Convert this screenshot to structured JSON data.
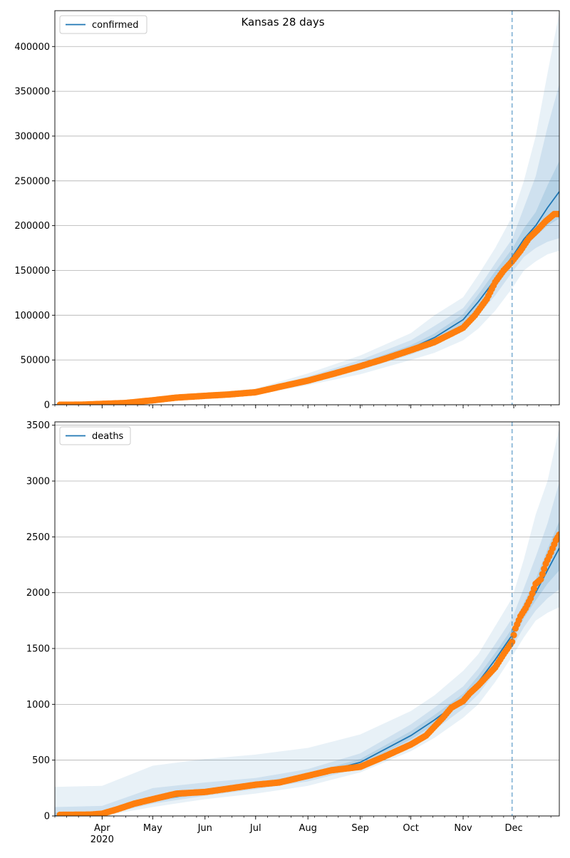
{
  "title": "Kansas 28 days",
  "colors": {
    "model_line": "#1f77b4",
    "observed": "#ff7f0e",
    "band": "#1f77b4",
    "grid": "#b0b0b0",
    "vline": "#1f77b4"
  },
  "x_axis": {
    "range": [
      "2020-03-04",
      "2020-12-28"
    ],
    "month_ticks": [
      {
        "date": "2020-04-01",
        "label": "Apr",
        "sub": "2020"
      },
      {
        "date": "2020-05-01",
        "label": "May",
        "sub": ""
      },
      {
        "date": "2020-06-01",
        "label": "Jun",
        "sub": ""
      },
      {
        "date": "2020-07-01",
        "label": "Jul",
        "sub": ""
      },
      {
        "date": "2020-08-01",
        "label": "Aug",
        "sub": ""
      },
      {
        "date": "2020-09-01",
        "label": "Sep",
        "sub": ""
      },
      {
        "date": "2020-10-01",
        "label": "Oct",
        "sub": ""
      },
      {
        "date": "2020-11-01",
        "label": "Nov",
        "sub": ""
      },
      {
        "date": "2020-12-01",
        "label": "Dec",
        "sub": ""
      }
    ],
    "forecast_start": "2020-11-30"
  },
  "chart_data": [
    {
      "type": "line",
      "legend": "confirmed",
      "legend_position": "top-left",
      "grid": "horizontal",
      "ylim": [
        0,
        440000
      ],
      "yticks": [
        0,
        50000,
        100000,
        150000,
        200000,
        250000,
        300000,
        350000,
        400000
      ],
      "model": {
        "x": [
          "2020-03-04",
          "2020-04-01",
          "2020-05-01",
          "2020-06-01",
          "2020-07-01",
          "2020-08-01",
          "2020-09-01",
          "2020-10-01",
          "2020-10-15",
          "2020-11-01",
          "2020-11-10",
          "2020-11-20",
          "2020-11-30",
          "2020-12-07",
          "2020-12-14",
          "2020-12-21",
          "2020-12-28"
        ],
        "y": [
          0,
          1000,
          4500,
          10000,
          14000,
          28000,
          44000,
          63000,
          75000,
          95000,
          115000,
          140000,
          165000,
          185000,
          200000,
          220000,
          238000
        ]
      },
      "bands": [
        {
          "level": "outer",
          "x": [
            "2020-03-04",
            "2020-04-01",
            "2020-05-01",
            "2020-06-01",
            "2020-07-01",
            "2020-08-01",
            "2020-09-01",
            "2020-10-01",
            "2020-10-15",
            "2020-11-01",
            "2020-11-10",
            "2020-11-20",
            "2020-11-30",
            "2020-12-07",
            "2020-12-14",
            "2020-12-21",
            "2020-12-28"
          ],
          "lower": [
            0,
            500,
            3000,
            8000,
            11000,
            22000,
            34000,
            50000,
            58000,
            72000,
            85000,
            105000,
            130000,
            150000,
            160000,
            168000,
            172000
          ],
          "upper": [
            0,
            1500,
            6000,
            13000,
            18000,
            35000,
            55000,
            80000,
            100000,
            120000,
            145000,
            175000,
            210000,
            250000,
            300000,
            370000,
            438000
          ]
        },
        {
          "level": "middle",
          "x": [
            "2020-03-04",
            "2020-04-01",
            "2020-05-01",
            "2020-06-01",
            "2020-07-01",
            "2020-08-01",
            "2020-09-01",
            "2020-10-01",
            "2020-10-15",
            "2020-11-01",
            "2020-11-10",
            "2020-11-20",
            "2020-11-30",
            "2020-12-07",
            "2020-12-14",
            "2020-12-21",
            "2020-12-28"
          ],
          "lower": [
            0,
            700,
            3500,
            9000,
            12500,
            25000,
            39000,
            56000,
            66000,
            83000,
            100000,
            122000,
            148000,
            165000,
            175000,
            182000,
            186000
          ],
          "upper": [
            0,
            1300,
            5500,
            11500,
            16000,
            31500,
            50000,
            72000,
            88000,
            108000,
            130000,
            158000,
            185000,
            220000,
            255000,
            310000,
            358000
          ]
        },
        {
          "level": "inner",
          "x": [
            "2020-03-04",
            "2020-04-01",
            "2020-05-01",
            "2020-06-01",
            "2020-07-01",
            "2020-08-01",
            "2020-09-01",
            "2020-10-01",
            "2020-10-15",
            "2020-11-01",
            "2020-11-10",
            "2020-11-20",
            "2020-11-30",
            "2020-12-07",
            "2020-12-14",
            "2020-12-21",
            "2020-12-28"
          ],
          "lower": [
            0,
            850,
            4000,
            9500,
            13200,
            26500,
            41500,
            59500,
            70500,
            89000,
            107000,
            131000,
            156000,
            175000,
            188000,
            200000,
            208000
          ],
          "upper": [
            0,
            1150,
            5000,
            10500,
            15000,
            29500,
            46500,
            66500,
            79500,
            101000,
            123000,
            149000,
            174000,
            197000,
            215000,
            245000,
            272000
          ]
        }
      ],
      "observed": {
        "x": [
          "2020-03-07",
          "2020-03-20",
          "2020-04-01",
          "2020-04-15",
          "2020-05-01",
          "2020-05-15",
          "2020-06-01",
          "2020-06-15",
          "2020-07-01",
          "2020-07-15",
          "2020-08-01",
          "2020-08-15",
          "2020-09-01",
          "2020-09-15",
          "2020-10-01",
          "2020-10-15",
          "2020-11-01",
          "2020-11-08",
          "2020-11-15",
          "2020-11-20",
          "2020-11-25",
          "2020-11-30",
          "2020-12-05",
          "2020-12-10",
          "2020-12-15",
          "2020-12-20",
          "2020-12-25",
          "2020-12-28"
        ],
        "y": [
          0,
          100,
          1000,
          2000,
          5000,
          8000,
          10000,
          11500,
          14000,
          20000,
          27000,
          34000,
          43000,
          51000,
          61000,
          70000,
          86000,
          100000,
          118000,
          137000,
          150000,
          160000,
          172000,
          186000,
          195000,
          205000,
          213000,
          213000
        ]
      }
    },
    {
      "type": "line",
      "legend": "deaths",
      "legend_position": "top-left",
      "grid": "horizontal",
      "ylim": [
        0,
        3530
      ],
      "yticks": [
        0,
        500,
        1000,
        1500,
        2000,
        2500,
        3000,
        3500
      ],
      "model": {
        "x": [
          "2020-03-04",
          "2020-04-01",
          "2020-05-01",
          "2020-06-01",
          "2020-07-01",
          "2020-08-01",
          "2020-09-01",
          "2020-10-01",
          "2020-10-15",
          "2020-11-01",
          "2020-11-10",
          "2020-11-20",
          "2020-11-30",
          "2020-12-07",
          "2020-12-14",
          "2020-12-21",
          "2020-12-28"
        ],
        "y": [
          0,
          20,
          140,
          215,
          275,
          355,
          480,
          720,
          860,
          1050,
          1200,
          1400,
          1620,
          1830,
          2000,
          2200,
          2400
        ]
      },
      "bands": [
        {
          "level": "outer",
          "x": [
            "2020-03-04",
            "2020-04-01",
            "2020-05-01",
            "2020-06-01",
            "2020-07-01",
            "2020-08-01",
            "2020-09-01",
            "2020-10-01",
            "2020-10-15",
            "2020-11-01",
            "2020-11-10",
            "2020-11-20",
            "2020-11-30",
            "2020-12-07",
            "2020-12-14",
            "2020-12-21",
            "2020-12-28"
          ],
          "lower": [
            0,
            0,
            80,
            150,
            200,
            270,
            390,
            580,
            700,
            880,
            1000,
            1200,
            1430,
            1600,
            1750,
            1820,
            1870
          ],
          "upper": [
            260,
            270,
            450,
            510,
            550,
            610,
            730,
            940,
            1080,
            1300,
            1450,
            1700,
            1950,
            2300,
            2700,
            3000,
            3480
          ]
        },
        {
          "level": "middle",
          "x": [
            "2020-03-04",
            "2020-04-01",
            "2020-05-01",
            "2020-06-01",
            "2020-07-01",
            "2020-08-01",
            "2020-09-01",
            "2020-10-01",
            "2020-10-15",
            "2020-11-01",
            "2020-11-10",
            "2020-11-20",
            "2020-11-30",
            "2020-12-07",
            "2020-12-14",
            "2020-12-21",
            "2020-12-28"
          ],
          "lower": [
            0,
            5,
            110,
            180,
            240,
            310,
            430,
            640,
            770,
            960,
            1090,
            1290,
            1510,
            1690,
            1840,
            1950,
            2030
          ],
          "upper": [
            80,
            90,
            250,
            300,
            340,
            420,
            560,
            820,
            970,
            1160,
            1320,
            1540,
            1770,
            2040,
            2320,
            2620,
            2990
          ]
        },
        {
          "level": "inner",
          "x": [
            "2020-03-04",
            "2020-04-01",
            "2020-05-01",
            "2020-06-01",
            "2020-07-01",
            "2020-08-01",
            "2020-09-01",
            "2020-10-01",
            "2020-10-15",
            "2020-11-01",
            "2020-11-10",
            "2020-11-20",
            "2020-11-30",
            "2020-12-07",
            "2020-12-14",
            "2020-12-21",
            "2020-12-28"
          ],
          "lower": [
            0,
            12,
            125,
            200,
            258,
            333,
            455,
            685,
            820,
            1010,
            1150,
            1350,
            1570,
            1770,
            1930,
            2080,
            2200
          ],
          "upper": [
            30,
            35,
            170,
            235,
            295,
            380,
            510,
            760,
            905,
            1095,
            1255,
            1460,
            1680,
            1910,
            2120,
            2390,
            2640
          ]
        }
      ],
      "observed": {
        "x": [
          "2020-03-07",
          "2020-03-25",
          "2020-04-01",
          "2020-04-10",
          "2020-04-20",
          "2020-05-01",
          "2020-05-15",
          "2020-06-01",
          "2020-06-15",
          "2020-07-01",
          "2020-07-15",
          "2020-08-01",
          "2020-08-15",
          "2020-09-01",
          "2020-09-15",
          "2020-10-01",
          "2020-10-10",
          "2020-10-20",
          "2020-10-25",
          "2020-11-01",
          "2020-11-05",
          "2020-11-10",
          "2020-11-15",
          "2020-11-20",
          "2020-11-25",
          "2020-11-30",
          "2020-12-02",
          "2020-12-05",
          "2020-12-08",
          "2020-12-11",
          "2020-12-14",
          "2020-12-17",
          "2020-12-20",
          "2020-12-23",
          "2020-12-26",
          "2020-12-28"
        ],
        "y": [
          10,
          12,
          20,
          60,
          110,
          150,
          200,
          215,
          245,
          280,
          300,
          360,
          410,
          440,
          530,
          640,
          720,
          880,
          970,
          1030,
          1100,
          1170,
          1250,
          1330,
          1450,
          1560,
          1680,
          1790,
          1860,
          1950,
          2080,
          2120,
          2260,
          2360,
          2470,
          2520
        ]
      }
    }
  ]
}
